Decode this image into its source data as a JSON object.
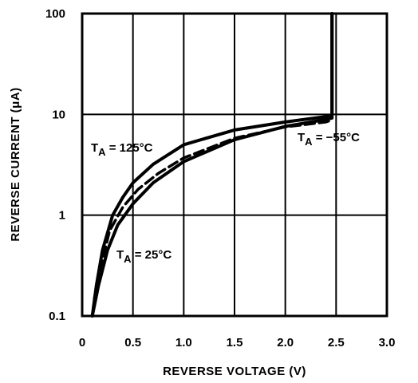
{
  "chart_data": {
    "type": "line",
    "title": "",
    "xlabel": "REVERSE VOLTAGE (V)",
    "ylabel": "REVERSE CURRENT (μA)",
    "xlim": [
      0,
      3.0
    ],
    "ylim": [
      0.1,
      100
    ],
    "yscale": "log",
    "grid": true,
    "x_ticks": [
      "0",
      "0.5",
      "1.0",
      "1.5",
      "2.0",
      "2.5",
      "3.0"
    ],
    "y_ticks": [
      "0.1",
      "1",
      "10",
      "100"
    ],
    "series": [
      {
        "name": "TA = 125°C",
        "style": "solid",
        "x": [
          0.1,
          0.14,
          0.2,
          0.3,
          0.4,
          0.5,
          0.7,
          1.0,
          1.5,
          2.0,
          2.4,
          2.46,
          2.46
        ],
        "y": [
          0.1,
          0.2,
          0.45,
          1.0,
          1.5,
          2.1,
          3.2,
          5.0,
          7.0,
          8.4,
          9.5,
          9.8,
          100
        ]
      },
      {
        "name": "TA = 25°C",
        "style": "solid",
        "x": [
          0.1,
          0.16,
          0.25,
          0.35,
          0.5,
          0.7,
          1.0,
          1.5,
          2.0,
          2.4,
          2.46,
          2.46
        ],
        "y": [
          0.1,
          0.2,
          0.45,
          0.8,
          1.3,
          2.1,
          3.4,
          5.6,
          7.6,
          8.9,
          9.2,
          100
        ]
      },
      {
        "name": "TA = −55°C",
        "style": "dashed",
        "x": [
          0.12,
          0.18,
          0.27,
          0.4,
          0.55,
          0.75,
          1.0,
          1.5,
          2.0,
          2.4,
          2.46
        ],
        "y": [
          0.15,
          0.3,
          0.7,
          1.2,
          1.8,
          2.6,
          3.7,
          5.8,
          7.5,
          8.4,
          8.8
        ]
      }
    ],
    "annotations": [
      {
        "main": "T",
        "sub": "A",
        "rest": " = 125°C"
      },
      {
        "main": "T",
        "sub": "A",
        "rest": " = −55°C"
      },
      {
        "main": "T",
        "sub": "A",
        "rest": " = 25°C"
      }
    ]
  }
}
